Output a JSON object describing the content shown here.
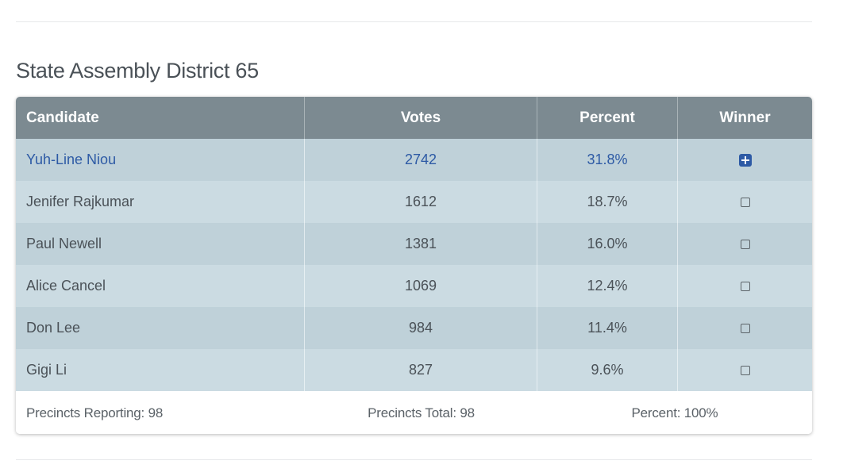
{
  "section": {
    "title": "State Assembly District 65"
  },
  "table": {
    "headers": {
      "candidate": "Candidate",
      "votes": "Votes",
      "percent": "Percent",
      "winner": "Winner"
    },
    "rows": [
      {
        "candidate": "Yuh-Line Niou",
        "votes": "2742",
        "percent": "31.8%",
        "winner": true
      },
      {
        "candidate": "Jenifer Rajkumar",
        "votes": "1612",
        "percent": "18.7%",
        "winner": false
      },
      {
        "candidate": "Paul Newell",
        "votes": "1381",
        "percent": "16.0%",
        "winner": false
      },
      {
        "candidate": "Alice Cancel",
        "votes": "1069",
        "percent": "12.4%",
        "winner": false
      },
      {
        "candidate": "Don Lee",
        "votes": "984",
        "percent": "11.4%",
        "winner": false
      },
      {
        "candidate": "Gigi Li",
        "votes": "827",
        "percent": "9.6%",
        "winner": false
      }
    ],
    "footer": {
      "precincts_reporting": "Precincts Reporting: 98",
      "precincts_total": "Precincts Total: 98",
      "percent": "Percent: 100%"
    }
  },
  "colors": {
    "header_bg": "#7c8a91",
    "row_odd": "#bfd1d9",
    "row_even": "#cbdbe2",
    "winner_text": "#2d5aa5",
    "winner_checkbox": "#2d5aa5"
  },
  "icons": {
    "winner_checked": "checkbox-plus-icon",
    "winner_unchecked": "checkbox-empty-icon"
  }
}
